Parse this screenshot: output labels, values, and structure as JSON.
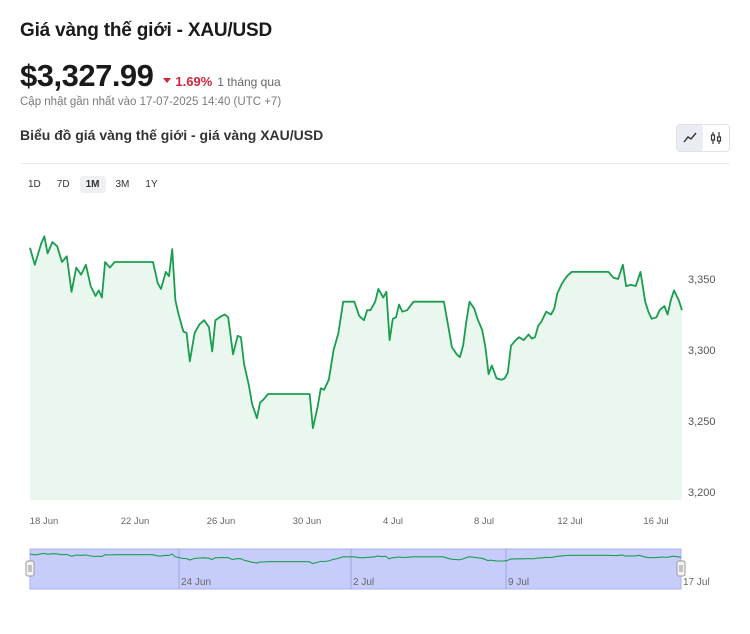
{
  "header": {
    "title": "Giá vàng thế giới - XAU/USD",
    "price": "$3,327.99",
    "change_pct": "1.69%",
    "change_period": "1 tháng qua",
    "updated": "Cập nhật gần nhất vào 17-07-2025 14:40 (UTC +7)",
    "subtitle": "Biểu đồ giá vàng thế giới - giá vàng XAU/USD"
  },
  "ranges": [
    "1D",
    "7D",
    "1M",
    "3M",
    "1Y"
  ],
  "active_range": "1M",
  "colors": {
    "line": "#1a9d4f",
    "fill": "#eaf7ee",
    "down": "#d0263b",
    "navigator": "#c7cdfa"
  },
  "icons": [
    "line-chart-icon",
    "candlestick-icon"
  ],
  "chart_data": {
    "type": "line",
    "ylim": [
      3200,
      3350
    ],
    "yticks": [
      "3,200",
      "3,250",
      "3,300",
      "3,350"
    ],
    "ytick_values": [
      3200,
      3250,
      3300,
      3350
    ],
    "xticks": [
      "18 Jun",
      "22 Jun",
      "26 Jun",
      "30 Jun",
      "4 Jul",
      "8 Jul",
      "12 Jul",
      "16 Jul"
    ],
    "xlim_days": [
      0,
      30
    ],
    "points": [
      [
        0,
        3372
      ],
      [
        0.3,
        3360
      ],
      [
        0.7,
        3375
      ],
      [
        0.9,
        3380
      ],
      [
        1.1,
        3368
      ],
      [
        1.4,
        3376
      ],
      [
        1.7,
        3373
      ],
      [
        2.0,
        3362
      ],
      [
        2.3,
        3366
      ],
      [
        2.6,
        3341
      ],
      [
        2.9,
        3358
      ],
      [
        3.2,
        3353
      ],
      [
        3.5,
        3360
      ],
      [
        3.8,
        3345
      ],
      [
        4.1,
        3338
      ],
      [
        4.3,
        3342
      ],
      [
        4.5,
        3337
      ],
      [
        4.7,
        3362
      ],
      [
        5.0,
        3358
      ],
      [
        5.3,
        3362
      ],
      [
        6.0,
        3362
      ],
      [
        7.0,
        3362
      ],
      [
        7.3,
        3362
      ],
      [
        7.7,
        3362
      ],
      [
        8.0,
        3347
      ],
      [
        8.2,
        3343
      ],
      [
        8.5,
        3355
      ],
      [
        8.7,
        3352
      ],
      [
        8.9,
        3371
      ],
      [
        9.1,
        3335
      ],
      [
        9.3,
        3325
      ],
      [
        9.6,
        3313
      ],
      [
        9.8,
        3312
      ],
      [
        10.0,
        3292
      ],
      [
        10.3,
        3312
      ],
      [
        10.6,
        3318
      ],
      [
        10.9,
        3321
      ],
      [
        11.2,
        3316
      ],
      [
        11.4,
        3299
      ],
      [
        11.6,
        3321
      ],
      [
        12.0,
        3324
      ],
      [
        12.2,
        3325
      ],
      [
        12.4,
        3323
      ],
      [
        12.7,
        3297
      ],
      [
        13.0,
        3310
      ],
      [
        13.2,
        3309
      ],
      [
        13.4,
        3290
      ],
      [
        13.7,
        3275
      ],
      [
        13.9,
        3262
      ],
      [
        14.2,
        3252
      ],
      [
        14.4,
        3263
      ],
      [
        14.6,
        3265
      ],
      [
        14.9,
        3269
      ],
      [
        15.5,
        3269
      ],
      [
        17.0,
        3269
      ],
      [
        17.5,
        3269
      ],
      [
        17.7,
        3245
      ],
      [
        18.0,
        3260
      ],
      [
        18.2,
        3273
      ],
      [
        18.4,
        3272
      ],
      [
        18.7,
        3279
      ],
      [
        19.0,
        3300
      ],
      [
        19.3,
        3312
      ],
      [
        19.6,
        3334
      ],
      [
        20.0,
        3334
      ],
      [
        20.3,
        3334
      ],
      [
        20.6,
        3324
      ],
      [
        20.9,
        3321
      ],
      [
        21.1,
        3328
      ],
      [
        21.3,
        3328
      ],
      [
        21.6,
        3334
      ],
      [
        21.8,
        3343
      ],
      [
        22.1,
        3337
      ],
      [
        22.3,
        3341
      ],
      [
        22.5,
        3307
      ],
      [
        22.7,
        3322
      ],
      [
        22.9,
        3323
      ],
      [
        23.1,
        3332
      ],
      [
        23.3,
        3327
      ],
      [
        23.6,
        3328
      ],
      [
        24.0,
        3334
      ],
      [
        25.0,
        3334
      ],
      [
        25.9,
        3334
      ],
      [
        26.2,
        3315
      ],
      [
        26.4,
        3302
      ],
      [
        26.7,
        3297
      ],
      [
        26.9,
        3295
      ],
      [
        27.1,
        3303
      ],
      [
        27.3,
        3320
      ],
      [
        27.5,
        3334
      ],
      [
        27.8,
        3329
      ],
      [
        28.0,
        3322
      ],
      [
        28.3,
        3314
      ],
      [
        28.5,
        3302
      ],
      [
        28.7,
        3283
      ],
      [
        28.9,
        3289
      ],
      [
        29.2,
        3280
      ],
      [
        29.5,
        3279
      ],
      [
        29.7,
        3280
      ],
      [
        29.9,
        3284
      ],
      [
        30.1,
        3303
      ],
      [
        30.4,
        3307
      ],
      [
        30.6,
        3309
      ],
      [
        30.9,
        3307
      ],
      [
        31.2,
        3311
      ],
      [
        31.4,
        3308
      ],
      [
        31.6,
        3309
      ],
      [
        31.8,
        3317
      ],
      [
        32.0,
        3320
      ],
      [
        32.3,
        3327
      ],
      [
        32.6,
        3325
      ],
      [
        32.8,
        3329
      ],
      [
        33.0,
        3340
      ],
      [
        33.3,
        3347
      ],
      [
        33.6,
        3352
      ],
      [
        33.9,
        3355
      ],
      [
        34.5,
        3355
      ],
      [
        35.5,
        3355
      ],
      [
        36.2,
        3355
      ],
      [
        36.5,
        3351
      ],
      [
        36.8,
        3350
      ],
      [
        37.1,
        3360
      ],
      [
        37.3,
        3345
      ],
      [
        37.6,
        3346
      ],
      [
        37.9,
        3345
      ],
      [
        38.2,
        3355
      ],
      [
        38.5,
        3334
      ],
      [
        38.7,
        3327
      ],
      [
        38.9,
        3322
      ],
      [
        39.2,
        3323
      ],
      [
        39.4,
        3328
      ],
      [
        39.7,
        3331
      ],
      [
        39.9,
        3325
      ],
      [
        40.1,
        3335
      ],
      [
        40.3,
        3342
      ],
      [
        40.6,
        3335
      ],
      [
        40.8,
        3328
      ]
    ]
  },
  "navigator": {
    "labels": [
      "24 Jun",
      "2 Jul",
      "9 Jul",
      "17 Jul"
    ]
  }
}
